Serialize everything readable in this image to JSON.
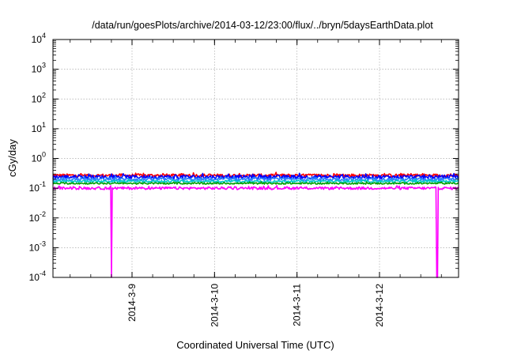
{
  "chart_data": {
    "type": "line",
    "title": "/data/run/goesPlots/archive/2014-03-12/23:00/flux/../bryn/5daysEarthData.plot",
    "xlabel": "Coordinated Universal Time (UTC)",
    "ylabel": "cGy/day",
    "yscale": "log",
    "ylim": [
      0.0001,
      10000
    ],
    "y_ticks": [
      {
        "value": 0.0001,
        "base": "10",
        "exp": "-4"
      },
      {
        "value": 0.001,
        "base": "10",
        "exp": "-3"
      },
      {
        "value": 0.01,
        "base": "10",
        "exp": "-2"
      },
      {
        "value": 0.1,
        "base": "10",
        "exp": "-1"
      },
      {
        "value": 1,
        "base": "10",
        "exp": "0"
      },
      {
        "value": 10,
        "base": "10",
        "exp": "1"
      },
      {
        "value": 100,
        "base": "10",
        "exp": "2"
      },
      {
        "value": 1000,
        "base": "10",
        "exp": "3"
      },
      {
        "value": 10000,
        "base": "10",
        "exp": "4"
      }
    ],
    "xlim": [
      "2014-03-08 01:00",
      "2014-03-12 23:00"
    ],
    "x_ticks": [
      "2014-3-9",
      "2014-3-10",
      "2014-3-11",
      "2014-3-12"
    ],
    "grid": true,
    "legend": "none",
    "series": [
      {
        "color": "#ff0000",
        "level": 0.27,
        "spread": 0.12
      },
      {
        "color": "#0000ff",
        "level": 0.24,
        "spread": 0.15
      },
      {
        "color": "#2a80ff",
        "level": 0.2,
        "spread": 0.12
      },
      {
        "color": "#00c8c8",
        "level": 0.17,
        "spread": 0.08
      },
      {
        "color": "#00a000",
        "level": 0.145,
        "spread": 0.06
      },
      {
        "color": "#ff00ff",
        "level": 0.1,
        "spread": 0.1
      }
    ],
    "dropouts": [
      {
        "series_color": "#ff00ff",
        "x": "2014-03-08 18:00",
        "value": 0.0001
      },
      {
        "series_color": "#ff00ff",
        "x": "2014-03-12 16:45",
        "value": 0.0001
      }
    ]
  }
}
